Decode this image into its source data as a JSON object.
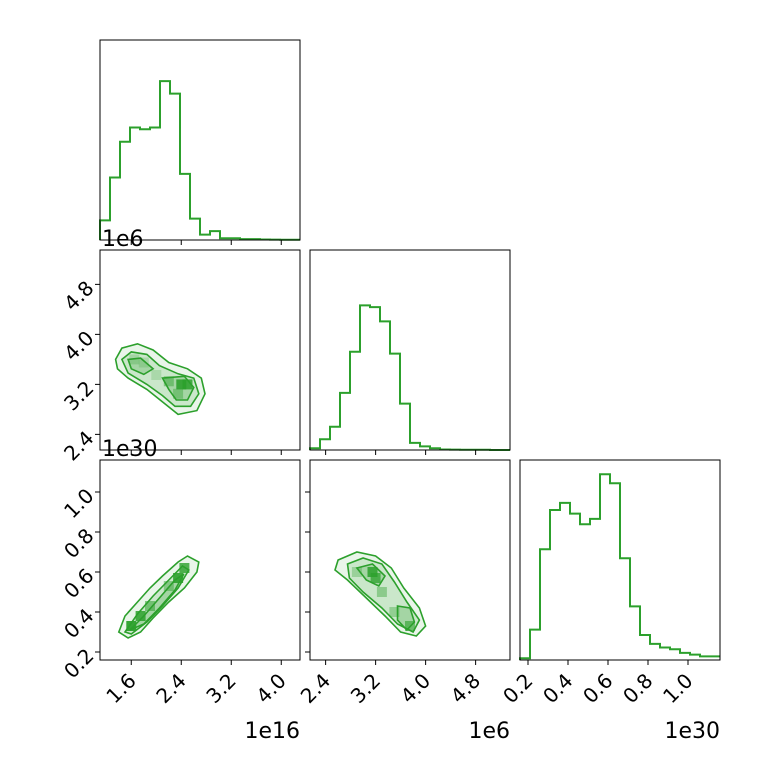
{
  "chart_data": {
    "type": "corner",
    "color": "#2ca02c",
    "parameters": [
      {
        "range": [
          1.1,
          4.3
        ],
        "ticks": [
          1.6,
          2.4,
          3.2,
          4.0
        ],
        "tick_labels": [
          "1.6",
          "2.4",
          "3.2",
          "4.0"
        ],
        "offset_text": "1e16"
      },
      {
        "range": [
          2.15,
          5.35
        ],
        "ticks": [
          2.4,
          3.2,
          4.0,
          4.8
        ],
        "tick_labels": [
          "2.4",
          "3.2",
          "4.0",
          "4.8"
        ],
        "offset_text": "1e6"
      },
      {
        "range": [
          0.16,
          1.16
        ],
        "ticks": [
          0.2,
          0.4,
          0.6,
          0.8,
          1.0
        ],
        "tick_labels": [
          "0.2",
          "0.4",
          "0.6",
          "0.8",
          "1.0"
        ],
        "offset_text": "1e30"
      }
    ],
    "histograms": [
      {
        "param": 0,
        "edges": [
          1.1,
          1.26,
          1.42,
          1.58,
          1.74,
          1.9,
          2.06,
          2.22,
          2.38,
          2.54,
          2.7,
          2.86,
          3.02,
          3.18,
          3.34,
          3.5,
          3.66,
          3.82,
          3.98,
          4.14,
          4.3
        ],
        "heights": [
          0.11,
          0.35,
          0.55,
          0.63,
          0.62,
          0.63,
          0.89,
          0.82,
          0.37,
          0.12,
          0.03,
          0.05,
          0.01,
          0.01,
          0.005,
          0.005,
          0.003,
          0.002,
          0.001,
          0.001
        ]
      },
      {
        "param": 1,
        "edges": [
          2.15,
          2.31,
          2.47,
          2.63,
          2.79,
          2.95,
          3.11,
          3.27,
          3.43,
          3.59,
          3.75,
          3.91,
          4.07,
          4.23,
          4.39,
          4.55,
          4.71,
          4.87,
          5.03,
          5.19,
          5.35
        ],
        "heights": [
          0.01,
          0.06,
          0.13,
          0.32,
          0.55,
          0.81,
          0.8,
          0.72,
          0.54,
          0.26,
          0.04,
          0.02,
          0.01,
          0.003,
          0.002,
          0.001,
          0.001,
          0.001,
          0.0,
          0.0
        ]
      },
      {
        "param": 2,
        "edges": [
          0.16,
          0.21,
          0.26,
          0.31,
          0.36,
          0.41,
          0.46,
          0.51,
          0.56,
          0.61,
          0.66,
          0.71,
          0.76,
          0.81,
          0.86,
          0.91,
          0.96,
          1.01,
          1.06,
          1.11,
          1.16
        ],
        "heights": [
          0.01,
          0.17,
          0.62,
          0.84,
          0.88,
          0.82,
          0.76,
          0.79,
          1.04,
          0.99,
          0.57,
          0.3,
          0.14,
          0.09,
          0.07,
          0.06,
          0.04,
          0.03,
          0.02,
          0.02
        ]
      }
    ],
    "hist_scale_max": 1.12,
    "contours": [
      {
        "x_param": 0,
        "y_param": 1,
        "cells": [
          {
            "x": 1.65,
            "y": 3.6,
            "shade": 0.25
          },
          {
            "x": 1.8,
            "y": 3.55,
            "shade": 0.2
          },
          {
            "x": 2.0,
            "y": 3.35,
            "shade": 0.2
          },
          {
            "x": 2.2,
            "y": 3.25,
            "shade": 0.45
          },
          {
            "x": 2.4,
            "y": 3.2,
            "shade": 0.9
          },
          {
            "x": 2.5,
            "y": 3.2,
            "shade": 0.85
          },
          {
            "x": 2.35,
            "y": 3.05,
            "shade": 0.4
          }
        ],
        "levels": [
          [
            [
              1.35,
              3.6
            ],
            [
              1.45,
              3.78
            ],
            [
              1.7,
              3.85
            ],
            [
              1.95,
              3.75
            ],
            [
              2.2,
              3.55
            ],
            [
              2.5,
              3.45
            ],
            [
              2.72,
              3.3
            ],
            [
              2.78,
              3.05
            ],
            [
              2.65,
              2.78
            ],
            [
              2.35,
              2.72
            ],
            [
              2.1,
              2.92
            ],
            [
              1.85,
              3.12
            ],
            [
              1.55,
              3.3
            ],
            [
              1.38,
              3.45
            ]
          ],
          [
            [
              1.45,
              3.6
            ],
            [
              1.6,
              3.72
            ],
            [
              1.85,
              3.68
            ],
            [
              2.05,
              3.5
            ],
            [
              2.35,
              3.37
            ],
            [
              2.6,
              3.3
            ],
            [
              2.68,
              3.05
            ],
            [
              2.55,
              2.85
            ],
            [
              2.3,
              2.85
            ],
            [
              2.1,
              3.02
            ],
            [
              1.85,
              3.2
            ],
            [
              1.55,
              3.38
            ]
          ],
          [
            [
              1.55,
              3.6
            ],
            [
              1.75,
              3.62
            ],
            [
              1.95,
              3.45
            ],
            [
              1.8,
              3.36
            ],
            [
              1.6,
              3.45
            ]
          ],
          [
            [
              2.1,
              3.3
            ],
            [
              2.45,
              3.33
            ],
            [
              2.6,
              3.15
            ],
            [
              2.5,
              2.95
            ],
            [
              2.32,
              2.95
            ],
            [
              2.2,
              3.12
            ]
          ]
        ]
      },
      {
        "x_param": 0,
        "y_param": 2,
        "cells": [
          {
            "x": 1.6,
            "y": 0.33,
            "shade": 0.95
          },
          {
            "x": 1.75,
            "y": 0.38,
            "shade": 0.85
          },
          {
            "x": 1.9,
            "y": 0.43,
            "shade": 0.55
          },
          {
            "x": 2.2,
            "y": 0.53,
            "shade": 0.45
          },
          {
            "x": 2.35,
            "y": 0.57,
            "shade": 0.9
          },
          {
            "x": 2.45,
            "y": 0.62,
            "shade": 0.8
          }
        ],
        "levels": [
          [
            [
              1.4,
              0.3
            ],
            [
              1.5,
              0.38
            ],
            [
              1.7,
              0.45
            ],
            [
              1.9,
              0.52
            ],
            [
              2.1,
              0.58
            ],
            [
              2.35,
              0.65
            ],
            [
              2.5,
              0.68
            ],
            [
              2.68,
              0.65
            ],
            [
              2.65,
              0.6
            ],
            [
              2.45,
              0.52
            ],
            [
              2.2,
              0.45
            ],
            [
              1.95,
              0.37
            ],
            [
              1.75,
              0.3
            ],
            [
              1.55,
              0.27
            ]
          ],
          [
            [
              1.5,
              0.3
            ],
            [
              1.7,
              0.39
            ],
            [
              1.95,
              0.48
            ],
            [
              2.2,
              0.56
            ],
            [
              2.42,
              0.63
            ],
            [
              2.52,
              0.61
            ],
            [
              2.35,
              0.52
            ],
            [
              2.1,
              0.43
            ],
            [
              1.85,
              0.35
            ],
            [
              1.6,
              0.29
            ]
          ],
          [
            [
              1.58,
              0.31
            ],
            [
              1.8,
              0.38
            ],
            [
              2.05,
              0.47
            ],
            [
              2.3,
              0.56
            ],
            [
              2.44,
              0.59
            ],
            [
              2.3,
              0.51
            ],
            [
              2.05,
              0.42
            ],
            [
              1.8,
              0.34
            ]
          ]
        ]
      },
      {
        "x_param": 1,
        "y_param": 2,
        "cells": [
          {
            "x": 2.9,
            "y": 0.6,
            "shade": 0.3
          },
          {
            "x": 3.15,
            "y": 0.6,
            "shade": 0.85
          },
          {
            "x": 3.2,
            "y": 0.57,
            "shade": 0.75
          },
          {
            "x": 3.3,
            "y": 0.5,
            "shade": 0.4
          },
          {
            "x": 3.5,
            "y": 0.4,
            "shade": 0.35
          },
          {
            "x": 3.75,
            "y": 0.33,
            "shade": 0.6
          }
        ],
        "levels": [
          [
            [
              2.6,
              0.66
            ],
            [
              2.9,
              0.7
            ],
            [
              3.2,
              0.68
            ],
            [
              3.45,
              0.62
            ],
            [
              3.65,
              0.52
            ],
            [
              3.9,
              0.42
            ],
            [
              4.0,
              0.33
            ],
            [
              3.85,
              0.28
            ],
            [
              3.6,
              0.3
            ],
            [
              3.35,
              0.38
            ],
            [
              3.05,
              0.47
            ],
            [
              2.75,
              0.56
            ],
            [
              2.55,
              0.61
            ]
          ],
          [
            [
              2.75,
              0.64
            ],
            [
              3.0,
              0.67
            ],
            [
              3.3,
              0.64
            ],
            [
              3.5,
              0.55
            ],
            [
              3.7,
              0.45
            ],
            [
              3.9,
              0.36
            ],
            [
              3.8,
              0.3
            ],
            [
              3.55,
              0.34
            ],
            [
              3.3,
              0.42
            ],
            [
              3.0,
              0.5
            ],
            [
              2.78,
              0.57
            ]
          ],
          [
            [
              2.9,
              0.62
            ],
            [
              3.15,
              0.64
            ],
            [
              3.35,
              0.58
            ],
            [
              3.25,
              0.53
            ],
            [
              3.05,
              0.56
            ]
          ],
          [
            [
              3.55,
              0.43
            ],
            [
              3.75,
              0.42
            ],
            [
              3.82,
              0.35
            ],
            [
              3.7,
              0.31
            ],
            [
              3.55,
              0.36
            ]
          ]
        ]
      }
    ]
  }
}
